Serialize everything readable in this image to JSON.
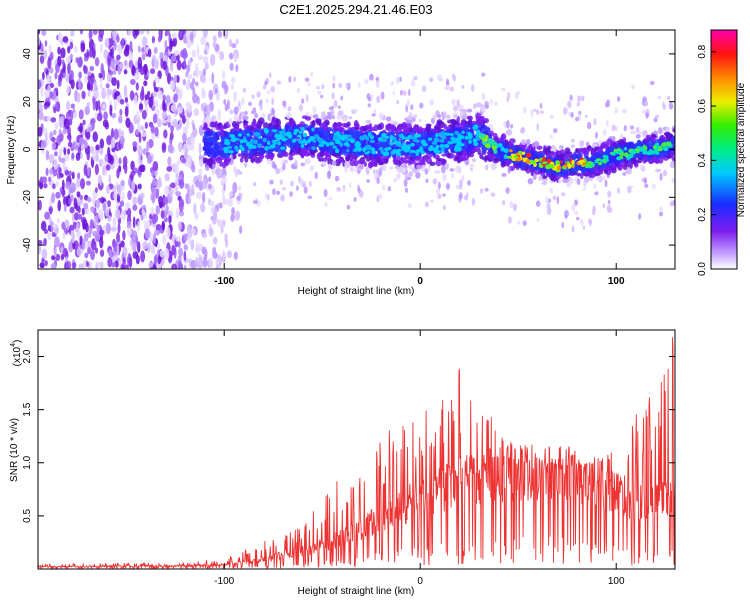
{
  "chart_data": [
    {
      "type": "heatmap",
      "title": "C2E1.2025.294.21.46.E03",
      "xlabel": "Height of straight line (km)",
      "ylabel": "Frequency (Hz)",
      "xlim": [
        -195,
        130
      ],
      "ylim": [
        -50,
        50
      ],
      "x_ticks": [
        "-100",
        "0",
        "100"
      ],
      "y_ticks": [
        "-40",
        "-20",
        "0",
        "20",
        "40"
      ],
      "colorbar": {
        "label": "Normalized spectral amplitude",
        "range": [
          0.0,
          0.88
        ],
        "ticks": [
          "0.0",
          "0.2",
          "0.4",
          "0.6",
          "0.8"
        ]
      },
      "ridge": {
        "description": "dominant frequency vs height",
        "x": [
          -100,
          -80,
          -60,
          -40,
          -20,
          0,
          20,
          30,
          35,
          40,
          50,
          60,
          70,
          80,
          90,
          100,
          110,
          120,
          130
        ],
        "y": [
          2,
          4,
          5,
          3,
          2,
          2,
          4,
          6,
          3,
          0,
          -3,
          -5,
          -7,
          -6,
          -5,
          -2,
          -1,
          0,
          2
        ]
      }
    },
    {
      "type": "line",
      "title": "",
      "xlabel": "Height of straight line (km)",
      "ylabel": "SNR (10 * v/v)",
      "scale_label": "(x10",
      "scale_exp": "4",
      "scale_close": ")",
      "xlim": [
        -195,
        130
      ],
      "ylim": [
        0,
        2.25
      ],
      "x_ticks": [
        "-100",
        "0",
        "100"
      ],
      "y_ticks": [
        "0.5",
        "1.0",
        "1.5",
        "2.0"
      ],
      "series": [
        {
          "name": "SNR",
          "color": "#ee3333",
          "envelope_x": [
            -195,
            -120,
            -100,
            -90,
            -80,
            -70,
            -60,
            -50,
            -40,
            -30,
            -20,
            -10,
            0,
            10,
            20,
            30,
            40,
            50,
            60,
            70,
            80,
            90,
            100,
            110,
            120,
            130
          ],
          "envelope_mean": [
            0.02,
            0.03,
            0.04,
            0.06,
            0.09,
            0.13,
            0.17,
            0.22,
            0.3,
            0.38,
            0.48,
            0.58,
            0.68,
            0.76,
            0.83,
            0.86,
            0.88,
            0.9,
            0.92,
            0.91,
            0.88,
            0.82,
            0.72,
            0.62,
            0.62,
            0.75
          ],
          "envelope_peak": [
            0.05,
            0.06,
            0.1,
            0.18,
            0.28,
            0.32,
            0.42,
            0.7,
            0.9,
            1.05,
            1.2,
            1.45,
            1.5,
            1.7,
            1.95,
            1.65,
            1.3,
            1.2,
            1.1,
            1.05,
            1.0,
            1.05,
            1.2,
            1.45,
            1.8,
            2.25
          ]
        }
      ]
    }
  ]
}
